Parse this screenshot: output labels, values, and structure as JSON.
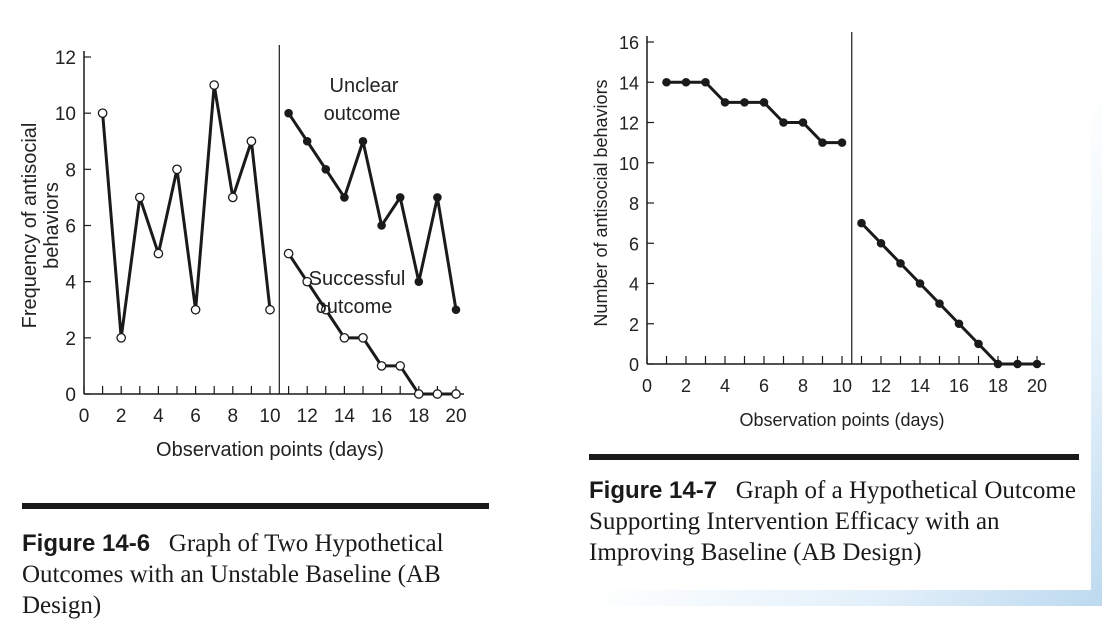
{
  "figures": [
    {
      "caption_label": "Figure 14-6",
      "caption_text": "Graph of Two Hypothetical Outcomes with an Unstable Baseline (AB Design)"
    },
    {
      "caption_label": "Figure 14-7",
      "caption_text": "Graph of a Hypothetical Outcome Supporting Intervention Efficacy with an Improving Baseline (AB Design)"
    }
  ],
  "colors": {
    "line": "#1a1a1a",
    "background": "#ffffff",
    "accent_fade": "#bcd9ef"
  },
  "chart_data": [
    {
      "type": "line",
      "title": "",
      "xlabel": "Observation points (days)",
      "ylabel": "Frequency of antisocial behaviors",
      "xlim": [
        0,
        20
      ],
      "ylim": [
        0,
        12
      ],
      "x_ticks": [
        0,
        2,
        4,
        6,
        8,
        10,
        12,
        14,
        16,
        18,
        20
      ],
      "y_ticks": [
        0,
        2,
        4,
        6,
        8,
        10,
        12
      ],
      "phase_line_x": 10.5,
      "grid": false,
      "series": [
        {
          "marker": "open",
          "x": [
            1,
            2,
            3,
            4,
            5,
            6,
            7,
            8,
            9,
            10
          ],
          "y": [
            10,
            2,
            7,
            5,
            8,
            3,
            11,
            7,
            9,
            3
          ]
        },
        {
          "name": "Unclear outcome",
          "marker": "filled",
          "x": [
            11,
            12,
            13,
            14,
            15,
            16,
            17,
            18,
            19,
            20
          ],
          "y": [
            10,
            9,
            8,
            7,
            9,
            6,
            7,
            4,
            7,
            3
          ]
        },
        {
          "name": "Successful outcome",
          "marker": "open",
          "x": [
            11,
            12,
            13,
            14,
            15,
            16,
            17,
            18,
            19,
            20
          ],
          "y": [
            5,
            4,
            3,
            2,
            2,
            1,
            1,
            0,
            0,
            0
          ]
        }
      ],
      "annotations": [
        "Unclear outcome",
        "Successful outcome"
      ]
    },
    {
      "type": "line",
      "title": "",
      "xlabel": "Observation points (days)",
      "ylabel": "Number of antisocial behaviors",
      "xlim": [
        0,
        20
      ],
      "ylim": [
        0,
        16
      ],
      "x_ticks": [
        0,
        2,
        4,
        6,
        8,
        10,
        12,
        14,
        16,
        18,
        20
      ],
      "y_ticks": [
        0,
        2,
        4,
        6,
        8,
        10,
        12,
        14,
        16
      ],
      "phase_line_x": 10.5,
      "grid": false,
      "series": [
        {
          "marker": "filled",
          "x": [
            1,
            2,
            3,
            4,
            5,
            6,
            7,
            8,
            9,
            10
          ],
          "y": [
            14,
            14,
            14,
            13,
            13,
            13,
            12,
            12,
            11,
            11
          ]
        },
        {
          "marker": "filled",
          "x": [
            11,
            12,
            13,
            14,
            15,
            16,
            17,
            18,
            19,
            20
          ],
          "y": [
            7,
            6,
            5,
            4,
            3,
            2,
            1,
            0,
            0,
            0
          ]
        }
      ]
    }
  ]
}
